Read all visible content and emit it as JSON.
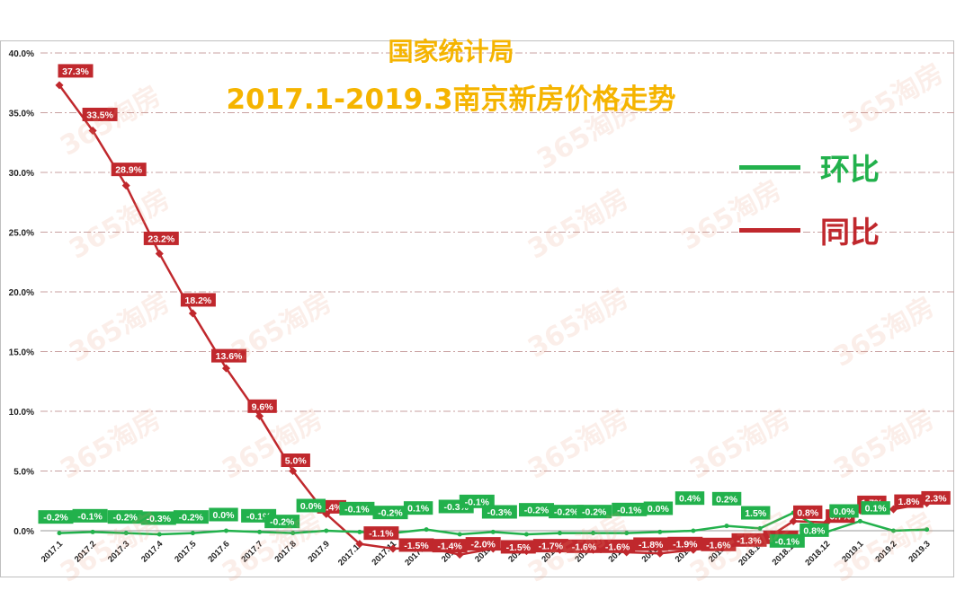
{
  "title_line1": "国家统计局",
  "title_line2": "2017.1-2019.3南京新房价格走势",
  "watermark_text": "365淘房",
  "colors": {
    "huanbi": "#22b14c",
    "tongbi": "#c0282d",
    "title": "#f5b400"
  },
  "legend": [
    {
      "label": "环比",
      "color": "#22b14c"
    },
    {
      "label": "同比",
      "color": "#c0282d"
    }
  ],
  "chart_data": {
    "type": "line",
    "x": [
      "2017.1",
      "2017.2",
      "2017.3",
      "2017.4",
      "2017.5",
      "2017.6",
      "2017.7",
      "2017.8",
      "2017.9",
      "2017.10",
      "2017.11",
      "2017.12",
      "2018.1",
      "2018.2",
      "2018.3",
      "2018.4",
      "2018.5",
      "2018.6",
      "2018.7",
      "2018.8",
      "2018.9",
      "2018.10",
      "2018.11",
      "2018.12",
      "2019.1",
      "2019.2",
      "2019.3"
    ],
    "y_ticks": [
      "0.0%",
      "5.0%",
      "10.0%",
      "15.0%",
      "20.0%",
      "25.0%",
      "30.0%",
      "35.0%",
      "40.0%"
    ],
    "ylim": [
      0,
      40
    ],
    "grid": true,
    "legend_position": "right",
    "series": [
      {
        "name": "同比",
        "values": [
          37.3,
          33.5,
          28.9,
          23.2,
          18.2,
          13.6,
          9.6,
          5.0,
          1.4,
          -1.1,
          -1.5,
          -1.4,
          -2.0,
          -1.5,
          -1.7,
          -1.6,
          -1.6,
          -1.8,
          -1.9,
          -1.6,
          -1.3,
          -1.0,
          0.8,
          0.7,
          1.7,
          1.8,
          2.3
        ],
        "labels": [
          "37.3%",
          "33.5%",
          "28.9%",
          "23.2%",
          "18.2%",
          "13.6%",
          "9.6%",
          "5.0%",
          "1.4%",
          "-1.1%",
          "-1.5%",
          "-1.4%",
          "-2.0%",
          "-1.5%",
          "-1.7%",
          "-1.6%",
          "-1.6%",
          "-1.8%",
          "-1.9%",
          "-1.6%",
          "-1.3%",
          "-1.0%",
          "0.8%",
          "0.7%",
          "1.7%",
          "1.8%",
          "2.3%"
        ]
      },
      {
        "name": "环比",
        "values": [
          -0.2,
          -0.1,
          -0.2,
          -0.3,
          -0.2,
          0.0,
          -0.1,
          -0.2,
          0.0,
          -0.1,
          -0.2,
          0.1,
          -0.3,
          -0.1,
          -0.3,
          -0.2,
          -0.2,
          -0.2,
          -0.1,
          0.0,
          0.4,
          0.2,
          1.5,
          -0.1,
          0.8,
          0.0,
          0.1
        ],
        "labels": [
          "-0.2%",
          "-0.1%",
          "-0.2%",
          "-0.3%",
          "-0.2%",
          "0.0%",
          "-0.1%",
          "-0.2%",
          "0.0%",
          "-0.1%",
          "-0.2%",
          "0.1%",
          "-0.3%",
          "-0.1%",
          "-0.3%",
          "-0.2%",
          "-0.2%",
          "-0.2%",
          "-0.1%",
          "0.0%",
          "0.4%",
          "0.2%",
          "1.5%",
          "-0.1%",
          "0.8%",
          "0.0%",
          "0.1%"
        ]
      }
    ]
  }
}
